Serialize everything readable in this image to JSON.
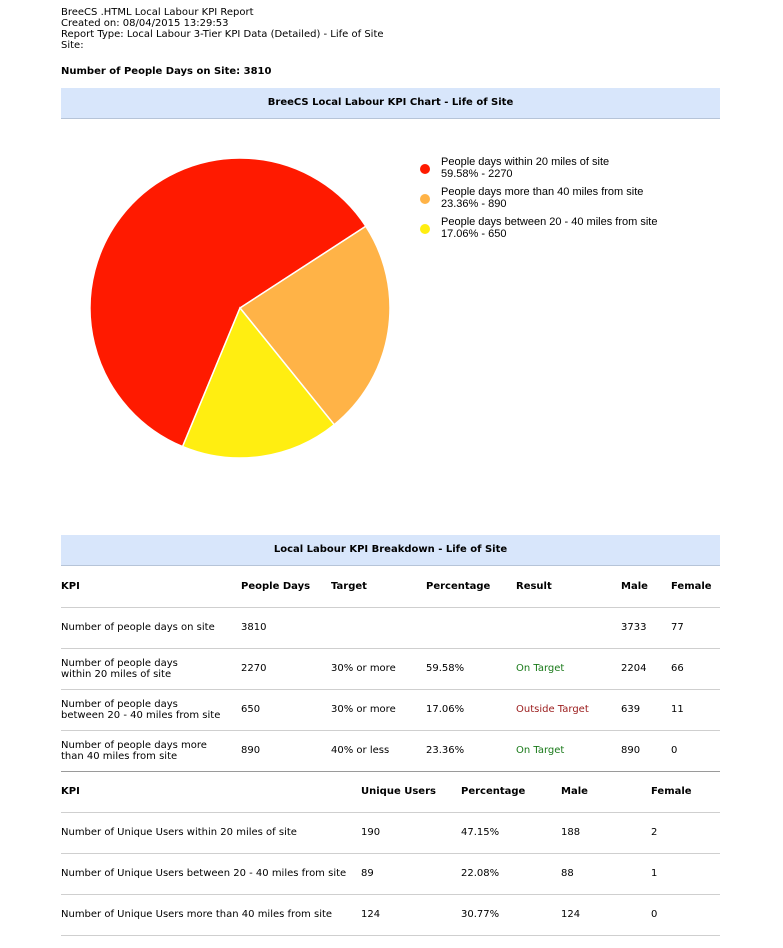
{
  "header": {
    "title": "BreeCS .HTML Local Labour KPI Report",
    "created": "Created on: 08/04/2015 13:29:53",
    "report_type": "Report Type: Local Labour 3-Tier KPI Data (Detailed) - Life of Site",
    "site": "Site:",
    "people_days": "Number of People Days on Site: 3810"
  },
  "chart_banner": "BreeCS Local Labour KPI Chart - Life of Site",
  "chart_data": {
    "type": "pie",
    "title": "BreeCS Local Labour KPI Chart - Life of Site",
    "slices": [
      {
        "label": "People days within 20 miles of site",
        "value": 2270,
        "percent": 59.58,
        "color": "#ff1a00",
        "detail": "59.58% - 2270"
      },
      {
        "label": "People days more than 40 miles from site",
        "value": 890,
        "percent": 23.36,
        "color": "#ffb347",
        "detail": "23.36% - 890"
      },
      {
        "label": "People days between 20 - 40 miles from site",
        "value": 650,
        "percent": 17.06,
        "color": "#ffee11",
        "detail": "17.06% - 650"
      }
    ],
    "legend_position": "right"
  },
  "breakdown_banner": "Local Labour KPI Breakdown - Life of Site",
  "table1": {
    "headers": [
      "KPI",
      "People Days",
      "Target",
      "Percentage",
      "Result",
      "Male",
      "Female"
    ],
    "rows": [
      {
        "kpi": "Number of people days on site",
        "days": "3810",
        "target": "",
        "pct": "",
        "result": "",
        "male": "3733",
        "female": "77"
      },
      {
        "kpi": "Number of people days within 20 miles of site",
        "days": "2270",
        "target": "30% or more",
        "pct": "59.58%",
        "result": "On Target",
        "male": "2204",
        "female": "66"
      },
      {
        "kpi": "Number of people days between 20 - 40 miles from site",
        "days": "650",
        "target": "30% or more",
        "pct": "17.06%",
        "result": "Outside Target",
        "male": "639",
        "female": "11"
      },
      {
        "kpi": "Number of people days more than 40 miles from site",
        "days": "890",
        "target": "40% or less",
        "pct": "23.36%",
        "result": "On Target",
        "male": "890",
        "female": "0"
      }
    ]
  },
  "table2": {
    "headers": [
      "KPI",
      "Unique Users",
      "Percentage",
      "Male",
      "Female"
    ],
    "rows": [
      {
        "kpi": "Number of Unique Users within 20 miles of site",
        "users": "190",
        "pct": "47.15%",
        "male": "188",
        "female": "2"
      },
      {
        "kpi": "Number of Unique Users between 20 - 40 miles from site",
        "users": "89",
        "pct": "22.08%",
        "male": "88",
        "female": "1"
      },
      {
        "kpi": "Number of Unique Users more than 40 miles from site",
        "users": "124",
        "pct": "30.77%",
        "male": "124",
        "female": "0"
      }
    ]
  }
}
